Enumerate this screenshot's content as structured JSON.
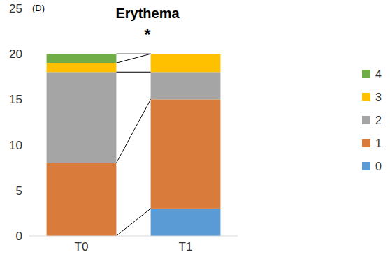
{
  "chart_data": {
    "type": "bar",
    "title": "Erythema",
    "annotations": [
      "(D)",
      "*"
    ],
    "stacked": true,
    "legend": "right",
    "grid": false,
    "categories": [
      "T0",
      "T1"
    ],
    "ylim": [
      0,
      25
    ],
    "yticks": [
      0,
      5,
      10,
      15,
      20,
      25
    ],
    "series": [
      {
        "name": "0",
        "color": "#5b9bd5",
        "values": [
          0,
          3
        ]
      },
      {
        "name": "1",
        "color": "#d97b3a",
        "values": [
          8,
          12
        ]
      },
      {
        "name": "2",
        "color": "#a5a5a5",
        "values": [
          10,
          3
        ]
      },
      {
        "name": "3",
        "color": "#ffc000",
        "values": [
          1,
          2
        ]
      },
      {
        "name": "4",
        "color": "#70ad47",
        "values": [
          1,
          0
        ]
      }
    ]
  }
}
